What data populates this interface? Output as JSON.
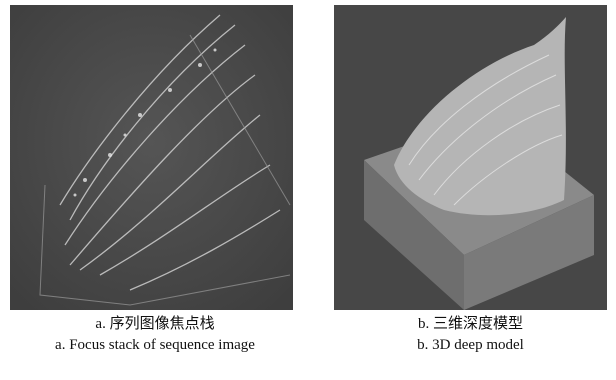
{
  "figures": [
    {
      "caption_zh": "a. 序列图像焦点栈",
      "caption_en": "a. Focus stack of sequence image"
    },
    {
      "caption_zh": "b. 三维深度模型",
      "caption_en": "b. 3D deep model"
    }
  ]
}
